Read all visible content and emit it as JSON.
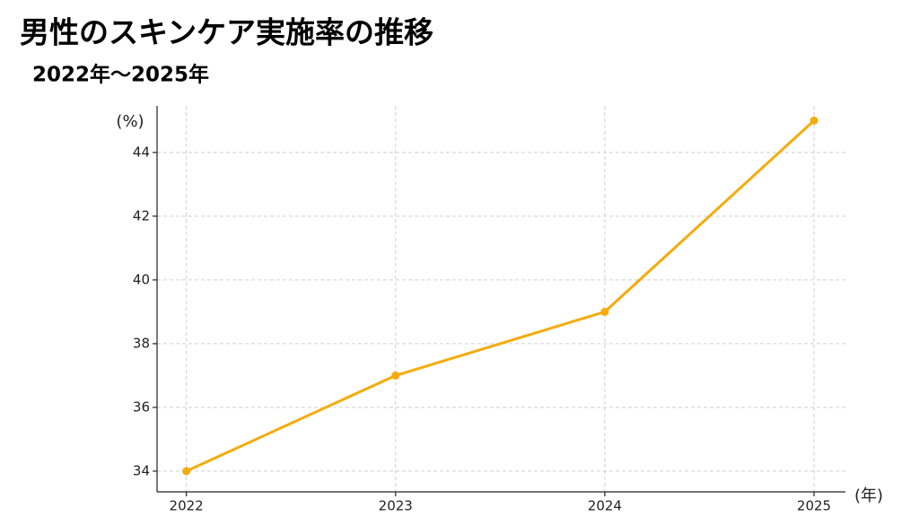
{
  "chart_data": {
    "type": "line",
    "title": "男性のスキンケア実施率の推移",
    "subtitle": "2022年～2025年",
    "y_label": "(%)",
    "x_label": "(年)",
    "x": [
      2022,
      2023,
      2024,
      2025
    ],
    "values": [
      34,
      37,
      39,
      45
    ],
    "color": "#f5ab0c",
    "xlim": [
      2021.86,
      2025.15
    ],
    "ylim": [
      33.35,
      45.46
    ],
    "xticks": [
      2022,
      2023,
      2024,
      2025
    ],
    "yticks": [
      34,
      36,
      38,
      40,
      42,
      44
    ],
    "grid": true
  }
}
